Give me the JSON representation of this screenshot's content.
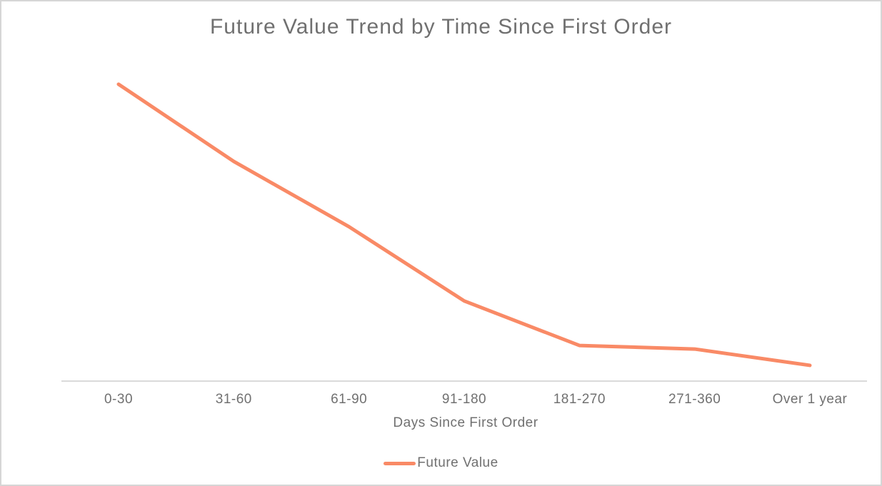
{
  "chart_data": {
    "type": "line",
    "title": "Future Value Trend by Time Since First Order",
    "xlabel": "Days Since First Order",
    "ylabel": "",
    "categories": [
      "0-30",
      "31-60",
      "61-90",
      "91-180",
      "181-270",
      "271-360",
      "Over 1 year"
    ],
    "series": [
      {
        "name": "Future Value",
        "values": [
          100,
          74,
          52,
          27,
          12,
          10.8,
          5.3
        ]
      }
    ],
    "ylim": [
      0,
      106.5
    ],
    "y_axis_visible": false,
    "grid": false,
    "legend_position": "bottom"
  },
  "colors": {
    "series_line": "#F98A66",
    "axis_line": "#DADADA",
    "text": "#707070",
    "frame_border": "#D6D6D6",
    "background": "#FFFFFF"
  }
}
